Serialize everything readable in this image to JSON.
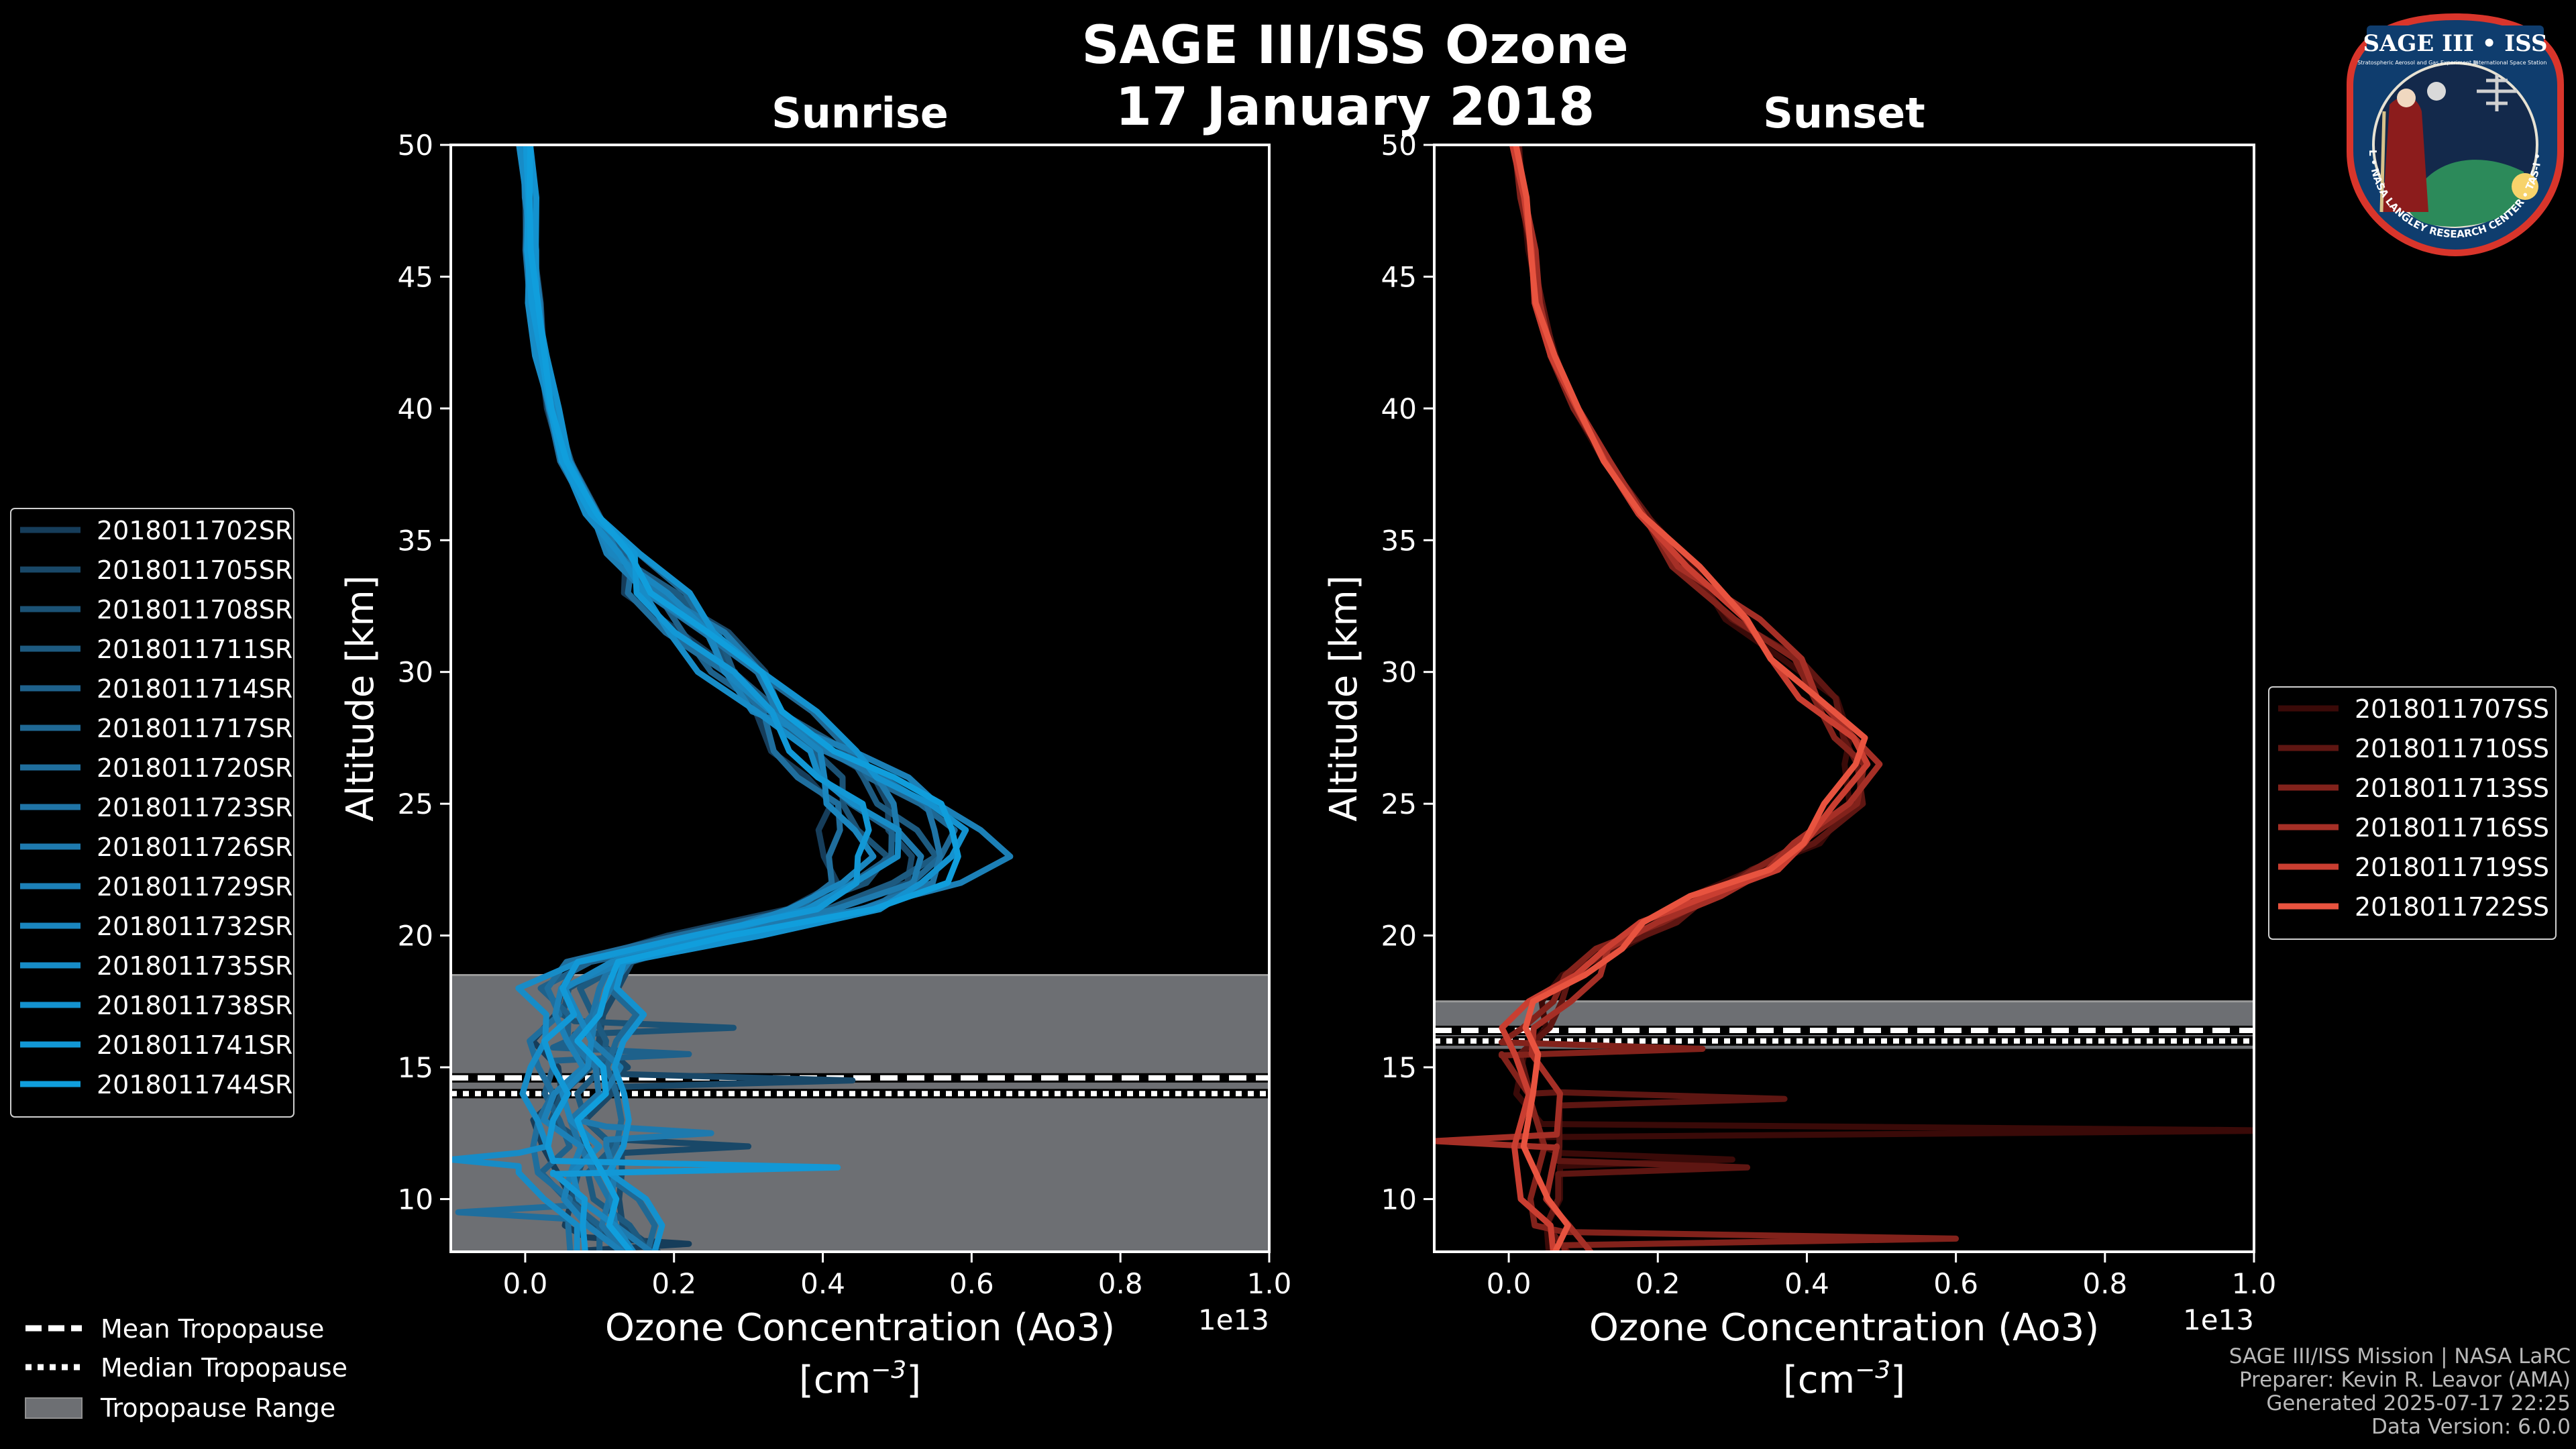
{
  "title_line1": "SAGE III/ISS Ozone",
  "title_line2": "17 January 2018",
  "footer": [
    "SAGE III/ISS Mission | NASA LaRC",
    "Preparer: Kevin R. Leavor (AMA)",
    "Generated 2025-07-17 22:25",
    "Data Version: 6.0.0"
  ],
  "logo_text": {
    "top": "SAGE III • ISS",
    "sub_left": "Stratospheric Aerosol and Gas Experiment III",
    "sub_right": "International Space Station",
    "ring": "BALL • NASA LANGLEY RESEARCH CENTER • TAS-I • ESA"
  },
  "colors": {
    "background": "#000000",
    "tropo_band": "#6d6f73"
  },
  "tropopause_legend": [
    {
      "label": "Mean Tropopause",
      "style": "dashed"
    },
    {
      "label": "Median Tropopause",
      "style": "dotted"
    },
    {
      "label": "Tropopause Range",
      "style": "patch"
    }
  ],
  "chart_data": [
    {
      "type": "line",
      "name": "sunrise",
      "title": "Sunrise",
      "xlabel_line1": "Ozone Concentration (Ao3)",
      "xlabel_unit_base": "[cm",
      "xlabel_unit_exp": "−3",
      "xlabel_unit_close": "]",
      "ylabel": "Altitude [km]",
      "x_offset_label": "1e13",
      "xlim": [
        -0.1,
        1.0
      ],
      "ylim": [
        8,
        50
      ],
      "xticks": [
        0.0,
        0.2,
        0.4,
        0.6,
        0.8,
        1.0
      ],
      "xtick_labels": [
        "0.0",
        "0.2",
        "0.4",
        "0.6",
        "0.8",
        "1.0"
      ],
      "yticks": [
        10,
        15,
        20,
        25,
        30,
        35,
        40,
        45,
        50
      ],
      "ytick_labels": [
        "10",
        "15",
        "20",
        "25",
        "30",
        "35",
        "40",
        "45",
        "50"
      ],
      "tropopause": {
        "mean": 14.6,
        "median": 14.0,
        "range": [
          8,
          18.5
        ]
      },
      "legend_position": "outside-left",
      "base_profile": [
        [
          0.0,
          50
        ],
        [
          0.004,
          48
        ],
        [
          0.008,
          46
        ],
        [
          0.012,
          44
        ],
        [
          0.02,
          42
        ],
        [
          0.035,
          40
        ],
        [
          0.055,
          38
        ],
        [
          0.09,
          36
        ],
        [
          0.13,
          34.5
        ],
        [
          0.17,
          33
        ],
        [
          0.23,
          31.5
        ],
        [
          0.28,
          30
        ],
        [
          0.33,
          28.5
        ],
        [
          0.38,
          27
        ],
        [
          0.41,
          26
        ],
        [
          0.44,
          25
        ],
        [
          0.46,
          24
        ],
        [
          0.47,
          23
        ],
        [
          0.45,
          22
        ],
        [
          0.38,
          21
        ],
        [
          0.24,
          20
        ],
        [
          0.1,
          19
        ],
        [
          0.06,
          18
        ],
        [
          0.07,
          17
        ],
        [
          0.06,
          16
        ],
        [
          0.07,
          15
        ],
        [
          0.06,
          14
        ],
        [
          0.05,
          13
        ],
        [
          0.07,
          12
        ],
        [
          0.06,
          11
        ],
        [
          0.08,
          10
        ],
        [
          0.1,
          9
        ],
        [
          0.12,
          8
        ]
      ],
      "series": [
        {
          "name": "2018011702SR",
          "color": "#163d5a",
          "dx": -0.03,
          "dpk": -0.04,
          "spikes": [
            [
              8.3,
              0.22
            ]
          ]
        },
        {
          "name": "2018011705SR",
          "color": "#194868",
          "dx": 0.05,
          "dpk": 0.02,
          "spikes": [
            [
              14.5,
              0.44
            ],
            [
              12.0,
              0.3
            ]
          ]
        },
        {
          "name": "2018011708SR",
          "color": "#1b5275",
          "dx": 0.0,
          "dpk": 0.0,
          "spikes": [
            [
              16.5,
              0.28
            ]
          ]
        },
        {
          "name": "2018011711SR",
          "color": "#1d5a80",
          "dx": 0.03,
          "dpk": 0.05,
          "spikes": []
        },
        {
          "name": "2018011714SR",
          "color": "#1e618b",
          "dx": -0.02,
          "dpk": 0.03,
          "spikes": [
            [
              15.5,
              0.22
            ]
          ]
        },
        {
          "name": "2018011717SR",
          "color": "#1f6894",
          "dx": 0.06,
          "dpk": 0.07,
          "spikes": []
        },
        {
          "name": "2018011720SR",
          "color": "#1f6e9d",
          "dx": -0.04,
          "dpk": -0.02,
          "spikes": [
            [
              9.5,
              -0.09
            ]
          ]
        },
        {
          "name": "2018011723SR",
          "color": "#1f74a6",
          "dx": 0.02,
          "dpk": 0.1,
          "spikes": []
        },
        {
          "name": "2018011726SR",
          "color": "#1e7aae",
          "dx": 0.04,
          "dpk": 0.04,
          "spikes": [
            [
              12.5,
              0.25
            ]
          ]
        },
        {
          "name": "2018011729SR",
          "color": "#1c80b7",
          "dx": -0.01,
          "dpk": 0.19,
          "spikes": []
        },
        {
          "name": "2018011732SR",
          "color": "#1a86bf",
          "dx": 0.01,
          "dpk": -0.03,
          "spikes": []
        },
        {
          "name": "2018011735SR",
          "color": "#178cc7",
          "dx": -0.05,
          "dpk": 0.06,
          "spikes": [
            [
              11.5,
              -0.1
            ]
          ]
        },
        {
          "name": "2018011738SR",
          "color": "#1492cf",
          "dx": 0.07,
          "dpk": 0.08,
          "spikes": []
        },
        {
          "name": "2018011741SR",
          "color": "#1298d6",
          "dx": -0.02,
          "dpk": 0.01,
          "spikes": [
            [
              11.2,
              0.42
            ]
          ]
        },
        {
          "name": "2018011744SR",
          "color": "#109edc",
          "dx": 0.03,
          "dpk": 0.12,
          "spikes": []
        }
      ]
    },
    {
      "type": "line",
      "name": "sunset",
      "title": "Sunset",
      "xlabel_line1": "Ozone Concentration (Ao3)",
      "xlabel_unit_base": "[cm",
      "xlabel_unit_exp": "−3",
      "xlabel_unit_close": "]",
      "ylabel": "Altitude [km]",
      "x_offset_label": "1e13",
      "xlim": [
        -0.1,
        1.0
      ],
      "ylim": [
        8,
        50
      ],
      "xticks": [
        0.0,
        0.2,
        0.4,
        0.6,
        0.8,
        1.0
      ],
      "xtick_labels": [
        "0.0",
        "0.2",
        "0.4",
        "0.6",
        "0.8",
        "1.0"
      ],
      "yticks": [
        10,
        15,
        20,
        25,
        30,
        35,
        40,
        45,
        50
      ],
      "ytick_labels": [
        "10",
        "15",
        "20",
        "25",
        "30",
        "35",
        "40",
        "45",
        "50"
      ],
      "tropopause": {
        "mean": 16.4,
        "median": 16.0,
        "range": [
          15.7,
          17.5
        ]
      },
      "legend_position": "outside-right",
      "base_profile": [
        [
          0.01,
          50
        ],
        [
          0.02,
          48
        ],
        [
          0.03,
          46
        ],
        [
          0.04,
          44
        ],
        [
          0.06,
          42
        ],
        [
          0.09,
          40
        ],
        [
          0.13,
          38
        ],
        [
          0.18,
          36
        ],
        [
          0.24,
          34
        ],
        [
          0.31,
          32
        ],
        [
          0.37,
          30.5
        ],
        [
          0.42,
          29
        ],
        [
          0.46,
          27.5
        ],
        [
          0.47,
          26.5
        ],
        [
          0.45,
          25
        ],
        [
          0.4,
          23.5
        ],
        [
          0.34,
          22.5
        ],
        [
          0.26,
          21.5
        ],
        [
          0.2,
          20.5
        ],
        [
          0.14,
          19.5
        ],
        [
          0.09,
          18.5
        ],
        [
          0.05,
          17.5
        ],
        [
          0.03,
          16.5
        ],
        [
          0.02,
          15.5
        ],
        [
          0.03,
          14
        ],
        [
          0.04,
          12
        ],
        [
          0.05,
          10
        ],
        [
          0.06,
          9
        ],
        [
          0.07,
          8
        ]
      ],
      "series": [
        {
          "name": "2018011707SS",
          "color": "#3a0a08",
          "dx": 0.0,
          "dpk": 0.0,
          "spikes": [
            [
              12.6,
              1.05
            ],
            [
              11.5,
              0.3
            ]
          ]
        },
        {
          "name": "2018011710SS",
          "color": "#5e1612",
          "dx": 0.01,
          "dpk": 0.0,
          "spikes": [
            [
              13.8,
              0.37
            ],
            [
              11.2,
              0.32
            ]
          ]
        },
        {
          "name": "2018011713SS",
          "color": "#82221b",
          "dx": -0.01,
          "dpk": 0.01,
          "spikes": [
            [
              15.7,
              0.26
            ],
            [
              8.5,
              0.6
            ]
          ]
        },
        {
          "name": "2018011716SS",
          "color": "#a52f26",
          "dx": 0.02,
          "dpk": -0.01,
          "spikes": [
            [
              12.2,
              -0.1
            ]
          ]
        },
        {
          "name": "2018011719SS",
          "color": "#c93e31",
          "dx": -0.02,
          "dpk": 0.02,
          "spikes": []
        },
        {
          "name": "2018011722SS",
          "color": "#e8533f",
          "dx": 0.0,
          "dpk": -0.01,
          "spikes": []
        }
      ]
    }
  ]
}
